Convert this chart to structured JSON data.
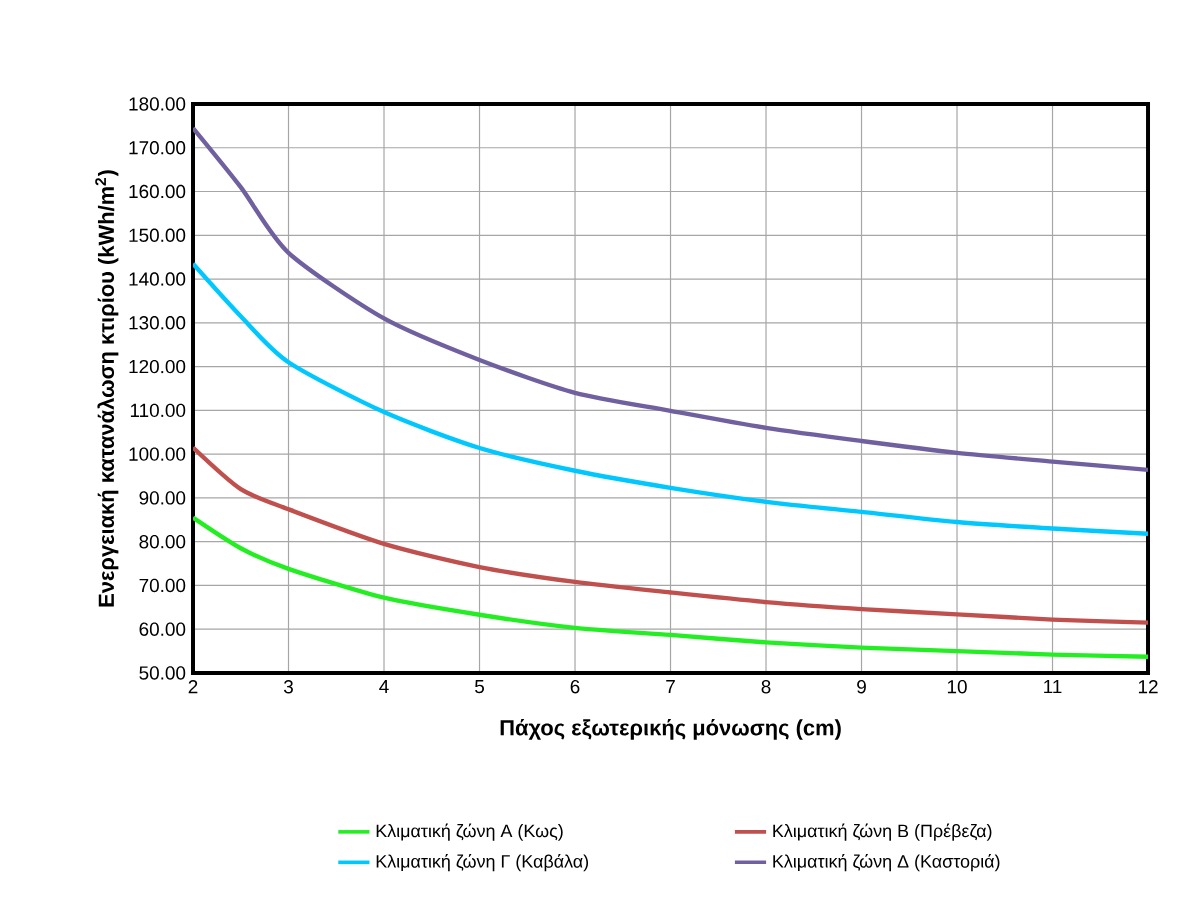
{
  "chart_data": {
    "type": "line",
    "xlabel": "Πάχος εξωτερικής μόνωσης (cm)",
    "ylabel": "Ενεργειακή κατανάλωση κτιρίου (kWh/m$^{2}$)",
    "x": [
      2,
      2.5,
      3,
      4,
      5,
      6,
      7,
      8,
      9,
      10,
      11,
      12
    ],
    "series": [
      {
        "name": "Κλιματική ζώνη Α (Κως)",
        "color": "#22ee22",
        "values": [
          85.5,
          78.5,
          73.8,
          67.2,
          63.3,
          60.3,
          58.7,
          57,
          55.8,
          55,
          54.2,
          53.7
        ]
      },
      {
        "name": "Κλιματική ζώνη Β (Πρέβεζα)",
        "color": "#c0504d",
        "values": [
          101.5,
          92,
          87.4,
          79.5,
          74.2,
          70.8,
          68.4,
          66.2,
          64.6,
          63.4,
          62.2,
          61.5
        ]
      },
      {
        "name": "Κλιματική ζώνη Γ (Καβάλα)",
        "color": "#00c8ff",
        "values": [
          143.5,
          131.5,
          121,
          109.6,
          101.4,
          96.2,
          92.3,
          89.1,
          86.8,
          84.5,
          83,
          81.8
        ]
      },
      {
        "name": "Κλιματική ζώνη Δ (Καστοριά)",
        "color": "#7060a0",
        "values": [
          174.5,
          161,
          146,
          131,
          121.5,
          114,
          109.9,
          106,
          103,
          100.3,
          98.3,
          96.4
        ]
      }
    ],
    "xlim": [
      2,
      12
    ],
    "xticks": [
      2,
      3,
      4,
      5,
      6,
      7,
      8,
      9,
      10,
      11,
      12
    ],
    "ylim": [
      50,
      180
    ],
    "yticks": [
      {
        "value": 50,
        "label": "50.00"
      },
      {
        "value": 60,
        "label": "60.00"
      },
      {
        "value": 70,
        "label": "70.00"
      },
      {
        "value": 80,
        "label": "80.00"
      },
      {
        "value": 90,
        "label": "90.00"
      },
      {
        "value": 100,
        "label": "100.00"
      },
      {
        "value": 110,
        "label": "110.00"
      },
      {
        "value": 120,
        "label": "120.00"
      },
      {
        "value": 130,
        "label": "130.00"
      },
      {
        "value": 140,
        "label": "140.00"
      },
      {
        "value": 150,
        "label": "150.00"
      },
      {
        "value": 160,
        "label": "160.00"
      },
      {
        "value": 170,
        "label": "170.00"
      },
      {
        "value": 180,
        "label": "180.00"
      }
    ],
    "grid": true,
    "legend": "bottom",
    "marker": "none",
    "line_style": "solid"
  }
}
